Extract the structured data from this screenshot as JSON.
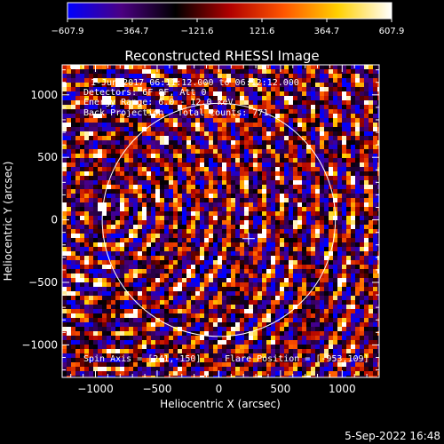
{
  "chart_data": {
    "type": "heatmap",
    "title": "Reconstructed RHESSI Image",
    "xlabel": "Heliocentric X (arcsec)",
    "ylabel": "Heliocentric Y (arcsec)",
    "xlim": [
      -1270,
      1300
    ],
    "ylim": [
      -1260,
      1240
    ],
    "x_ticks": [
      -1000,
      -500,
      0,
      500,
      1000
    ],
    "y_ticks": [
      1000,
      500,
      0,
      -500,
      -1000
    ],
    "x_tick_labels": [
      "−1000",
      "−500",
      "0",
      "500",
      "1000"
    ],
    "y_tick_labels": [
      "1000",
      "500",
      "0",
      "−500",
      "−1000"
    ],
    "colorbar": {
      "min": -607.9,
      "max": 607.9,
      "ticks": [
        -607.9,
        -364.7,
        -121.6,
        121.6,
        364.7,
        607.9
      ],
      "tick_labels": [
        "−607.9",
        "−364.7",
        "−121.6",
        "121.6",
        "364.7",
        "607.9"
      ],
      "colors": [
        "#0000ff",
        "#4b0082",
        "#000000",
        "#b00000",
        "#ff5500",
        "#ffd000",
        "#ffffff"
      ]
    },
    "annotations": {
      "time_range": "1-Jun-2017 06:11:12.000 to 06:12:12.000",
      "detectors": "Detectors: 6F 8F, Att 0",
      "energy_range": "Energy Range: 6.0 - 12.0 keV",
      "method": "Back Projection",
      "total_counts": "Total counts: 771",
      "spin_axis": "Spin Axis = [241,-150]",
      "flare_position": "Flare Position = [-953,109]"
    },
    "solar_limb": {
      "center": [
        0,
        0
      ],
      "radius_arcsec": 945
    },
    "spin_axis_marker": [
      241,
      -150
    ],
    "flare_source": [
      -953,
      109
    ]
  },
  "footer": {
    "date_stamp": "5-Sep-2022 16:48"
  }
}
